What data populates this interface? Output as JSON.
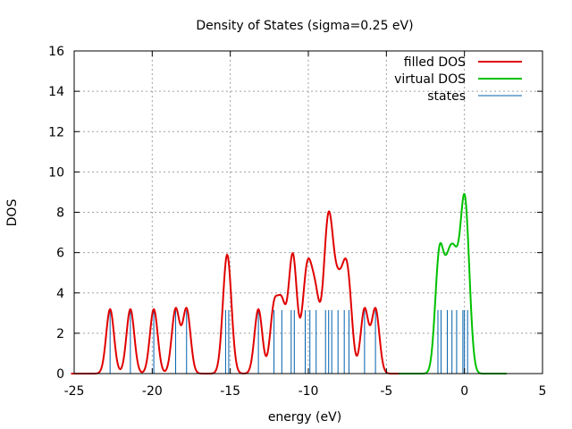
{
  "chart_data": {
    "type": "line",
    "title": "Density of States (sigma=0.25 eV)",
    "xlabel": "energy (eV)",
    "ylabel": "DOS",
    "xlim": [
      -25,
      5
    ],
    "ylim": [
      0,
      16
    ],
    "x_ticks": [
      "-25",
      "-20",
      "-15",
      "-10",
      "-5",
      "0",
      "5"
    ],
    "y_ticks": [
      "0",
      "2",
      "4",
      "6",
      "8",
      "10",
      "12",
      "14",
      "16"
    ],
    "grid": true,
    "legend_position": "top-right",
    "sigma": 0.25,
    "series": [
      {
        "name": "filled DOS",
        "color": "#e00000",
        "style": "line",
        "levels": [
          -22.7,
          -21.4,
          -19.9,
          -18.5,
          -17.8,
          -15.3,
          -15.1,
          -13.2,
          -12.2,
          -11.7,
          -11.1,
          -10.9,
          -10.2,
          -9.9,
          -9.5,
          -8.9,
          -8.7,
          -8.5,
          -8.1,
          -7.7,
          -7.4,
          -6.4,
          -5.7
        ]
      },
      {
        "name": "virtual DOS",
        "color": "#00c000",
        "style": "line",
        "levels": [
          -1.7,
          -1.5,
          -1.1,
          -0.8,
          -0.5,
          -0.1,
          0.0,
          0.2
        ]
      },
      {
        "name": "states",
        "color": "#0060ad",
        "style": "impulses",
        "height": 3.15,
        "levels": [
          -22.7,
          -21.4,
          -19.9,
          -18.5,
          -17.8,
          -15.3,
          -15.1,
          -13.2,
          -12.2,
          -11.7,
          -11.1,
          -10.9,
          -10.2,
          -9.9,
          -9.5,
          -8.9,
          -8.7,
          -8.5,
          -8.1,
          -7.7,
          -7.4,
          -6.4,
          -5.7,
          -1.7,
          -1.5,
          -1.1,
          -0.8,
          -0.5,
          -0.1,
          0.0,
          0.2
        ]
      }
    ]
  }
}
